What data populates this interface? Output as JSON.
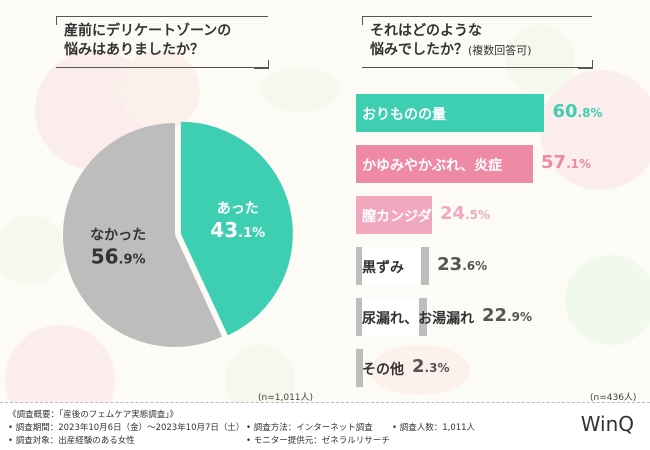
{
  "left_title": {
    "line1": "産前にデリケートゾーンの",
    "line2": "悩みはありましたか？"
  },
  "right_title": {
    "line1": "それはどのような",
    "line2": "悩みでしたか？",
    "line2_sub": "(複数回答可)"
  },
  "left_n": "(n=1,011人)",
  "right_n": "(n=436人)",
  "colors": {
    "teal": "#3ecfb2",
    "pink": "#ef8aa6",
    "light_pink": "#f1a8bf",
    "gray": "#bdbdbd",
    "gray_text": "#555555"
  },
  "chart_data": [
    {
      "type": "pie",
      "title": "産前にデリケートゾーンの悩みはありましたか？",
      "slices": [
        {
          "label": "あった",
          "value": 43.1,
          "int": "43",
          "dec": ".1%",
          "color": "#3ecfb2"
        },
        {
          "label": "なかった",
          "value": 56.9,
          "int": "56",
          "dec": ".9%",
          "color": "#bdbdbd"
        }
      ]
    },
    {
      "type": "bar",
      "title": "それはどのような悩みでしたか？(複数回答可)",
      "xlim": [
        0,
        100
      ],
      "bars": [
        {
          "label": "おりものの量",
          "value": 60.8,
          "int": "60",
          "dec": ".8%",
          "color": "#3ecfb2",
          "label_color": "#ffffff",
          "value_color": "#3ecfb2"
        },
        {
          "label": "かゆみやかぶれ、炎症",
          "value": 57.1,
          "int": "57",
          "dec": ".1%",
          "color": "#ef8aa6",
          "label_color": "#ffffff",
          "value_color": "#ef8aa6"
        },
        {
          "label": "膣カンジダ",
          "value": 24.5,
          "int": "24",
          "dec": ".5%",
          "color": "#f1a8bf",
          "label_color": "#ffffff",
          "value_color": "#f1a8bf"
        },
        {
          "label": "黒ずみ",
          "value": 23.6,
          "int": "23",
          "dec": ".6%",
          "color": "#bdbdbd",
          "label_color": "#333333",
          "value_color": "#555555"
        },
        {
          "label": "尿漏れ、お湯漏れ",
          "value": 22.9,
          "int": "22",
          "dec": ".9%",
          "color": "#bdbdbd",
          "label_color": "#333333",
          "value_color": "#555555"
        },
        {
          "label": "その他",
          "value": 2.3,
          "int": "2",
          "dec": ".3%",
          "color": "#bdbdbd",
          "label_color": "#333333",
          "value_color": "#555555"
        }
      ]
    }
  ],
  "footer": {
    "overview": "《調査概要：「産後のフェムケア実態調査」》",
    "period": "• 調査期間：2023年10月6日（金）～2023年10月7日（土）",
    "method": "• 調査方法：インターネット調査",
    "count": "• 調査人数：1,011人",
    "target": "• 調査対象：出産経験のある女性",
    "provider": "• モニター提供元：ゼネラルリサーチ"
  },
  "logo": "WinQ"
}
